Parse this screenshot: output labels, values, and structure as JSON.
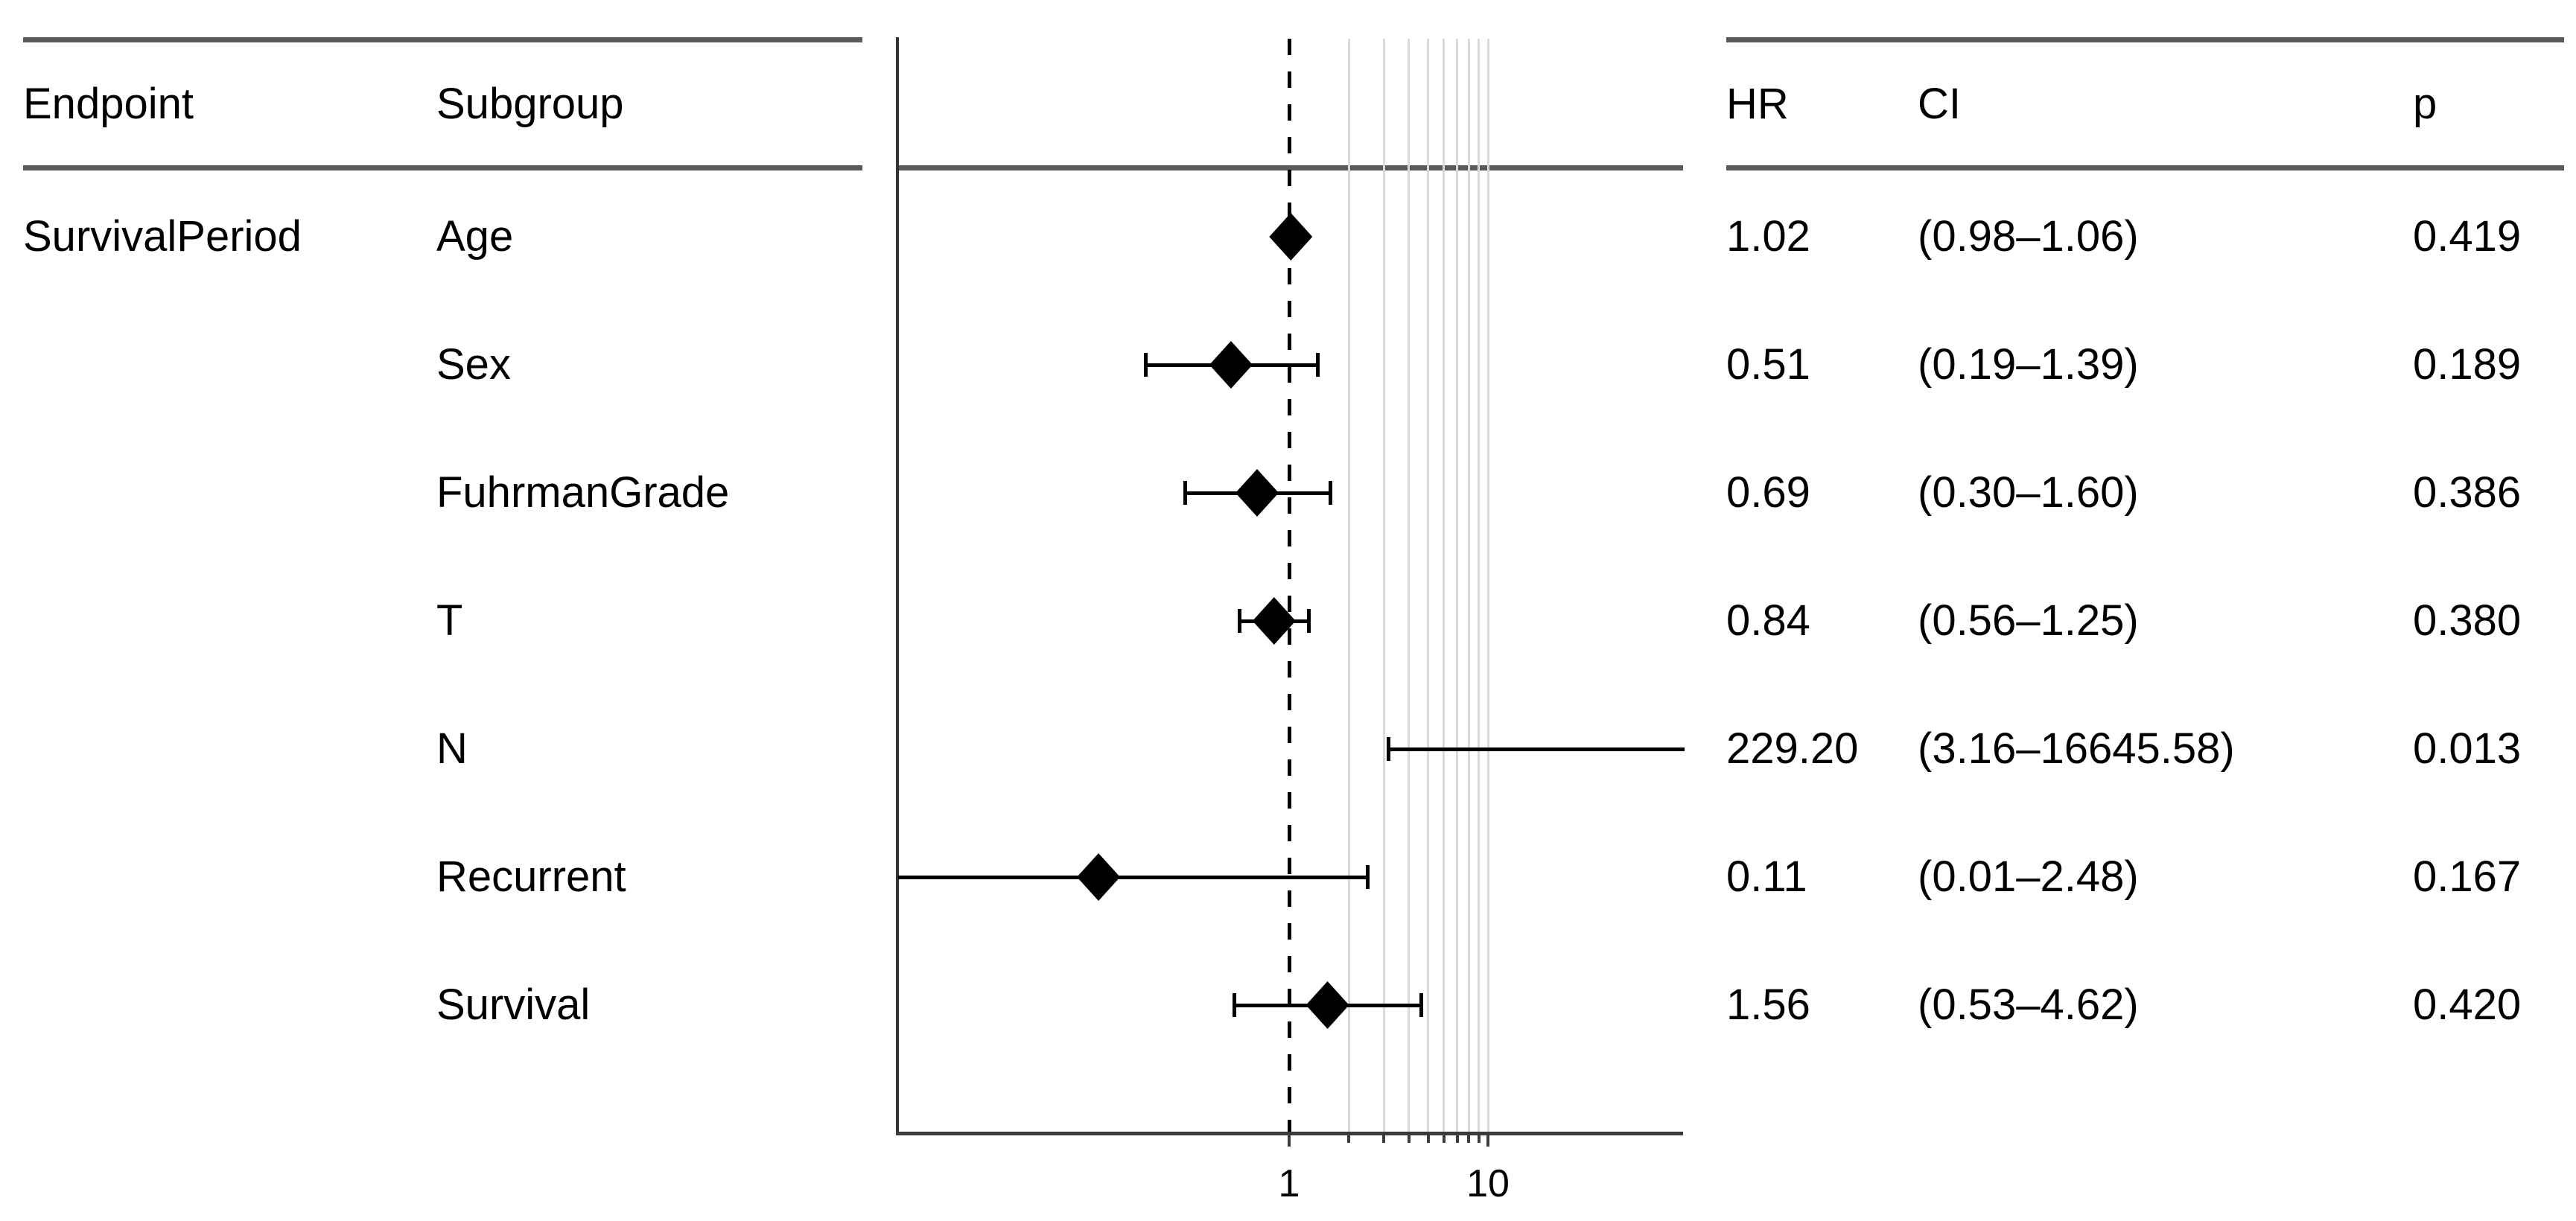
{
  "left_table": {
    "col1_header": "Endpoint",
    "col2_header": "Subgroup",
    "endpoint_label": "SurvivalPeriod"
  },
  "right_table": {
    "hr_header": "HR",
    "ci_header": "CI",
    "p_header": "p"
  },
  "colors": {
    "rule": "#5a5a5a",
    "axis": "#3c3c3c",
    "gridline": "#dadada",
    "marker": "#000000",
    "text": "#000000"
  },
  "chart_data": {
    "type": "forest",
    "x_scale": "log10",
    "reference_line": 1,
    "x_axis_labeled_ticks": [
      1,
      10
    ],
    "x_minor_ticks": [
      2,
      3,
      4,
      5,
      6,
      7,
      8,
      9,
      10
    ],
    "x_minor_gridlines": [
      2,
      3,
      4,
      5,
      6,
      7,
      8,
      9,
      10
    ],
    "x_tick_labels": [
      "1",
      "10"
    ],
    "grid": "minor-vertical-only",
    "legend": "none",
    "endpoint": "SurvivalPeriod",
    "rows": [
      {
        "subgroup": "Age",
        "hr": 1.02,
        "ci_low": 0.98,
        "ci_high": 1.06,
        "hr_text": "1.02",
        "ci_text": "(0.98–1.06)",
        "p_text": "0.419"
      },
      {
        "subgroup": "Sex",
        "hr": 0.51,
        "ci_low": 0.19,
        "ci_high": 1.39,
        "hr_text": "0.51",
        "ci_text": "(0.19–1.39)",
        "p_text": "0.189"
      },
      {
        "subgroup": "FuhrmanGrade",
        "hr": 0.69,
        "ci_low": 0.3,
        "ci_high": 1.6,
        "hr_text": "0.69",
        "ci_text": "(0.30–1.60)",
        "p_text": "0.386"
      },
      {
        "subgroup": "T",
        "hr": 0.84,
        "ci_low": 0.56,
        "ci_high": 1.25,
        "hr_text": "0.84",
        "ci_text": "(0.56–1.25)",
        "p_text": "0.380"
      },
      {
        "subgroup": "N",
        "hr": 229.2,
        "ci_low": 3.16,
        "ci_high": 16645.58,
        "hr_text": "229.20",
        "ci_text": "(3.16–16645.58)",
        "p_text": "0.013"
      },
      {
        "subgroup": "Recurrent",
        "hr": 0.11,
        "ci_low": 0.01,
        "ci_high": 2.48,
        "hr_text": "0.11",
        "ci_text": "(0.01–2.48)",
        "p_text": "0.167"
      },
      {
        "subgroup": "Survival",
        "hr": 1.56,
        "ci_low": 0.53,
        "ci_high": 4.62,
        "hr_text": "1.56",
        "ci_text": "(0.53–4.62)",
        "p_text": "0.420"
      }
    ]
  }
}
